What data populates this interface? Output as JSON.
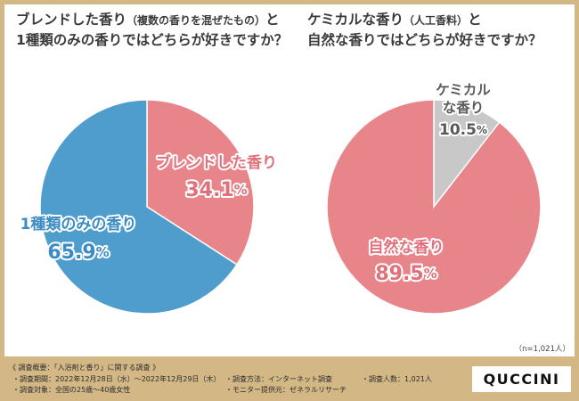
{
  "frame_color": "#d3b785",
  "chart_data": [
    {
      "type": "pie",
      "title": {
        "line1": {
          "main": "ブレンドした香り",
          "note": "（複数の香りを混ぜたもの）",
          "end": "と"
        },
        "line2": "1種類のみの香りではどちらが好きですか？"
      },
      "unit": "%",
      "slices": [
        {
          "label": [
            "ブレンドした香り"
          ],
          "value": 34.1,
          "color": "#e8858b",
          "text_color": "#e0707a"
        },
        {
          "label": [
            "1種類のみの香り"
          ],
          "value": 65.9,
          "color": "#4f9dcc",
          "text_color": "#3b8cc4"
        }
      ]
    },
    {
      "type": "pie",
      "title": {
        "line1": {
          "main": "ケミカルな香り",
          "note": "（人工香料）",
          "end": "と"
        },
        "line2": "自然な香りではどちらが好きですか？"
      },
      "unit": "%",
      "slices": [
        {
          "label": [
            "ケミカル",
            "な香り"
          ],
          "value": 10.5,
          "color": "#c8c8c8",
          "text_color": "#5a5a5a"
        },
        {
          "label": [
            "自然な香り"
          ],
          "value": 89.5,
          "color": "#e8858b",
          "text_color": "#e0707a"
        }
      ]
    }
  ],
  "sample_size": "（n=1,021人）",
  "survey": {
    "heading": "《 調査概要：「入浴剤と香り」に関する調査 》",
    "items": [
      "・調査期間：2022年12月28日（水）～2022年12月29日（木）",
      "・調査方法：インターネット調査",
      "・調査人数：1,021人",
      "・調査対象：全国の25歳～40歳女性",
      "・モニター提供元：ゼネラルリサーチ"
    ]
  },
  "logo": "QUCCINI"
}
